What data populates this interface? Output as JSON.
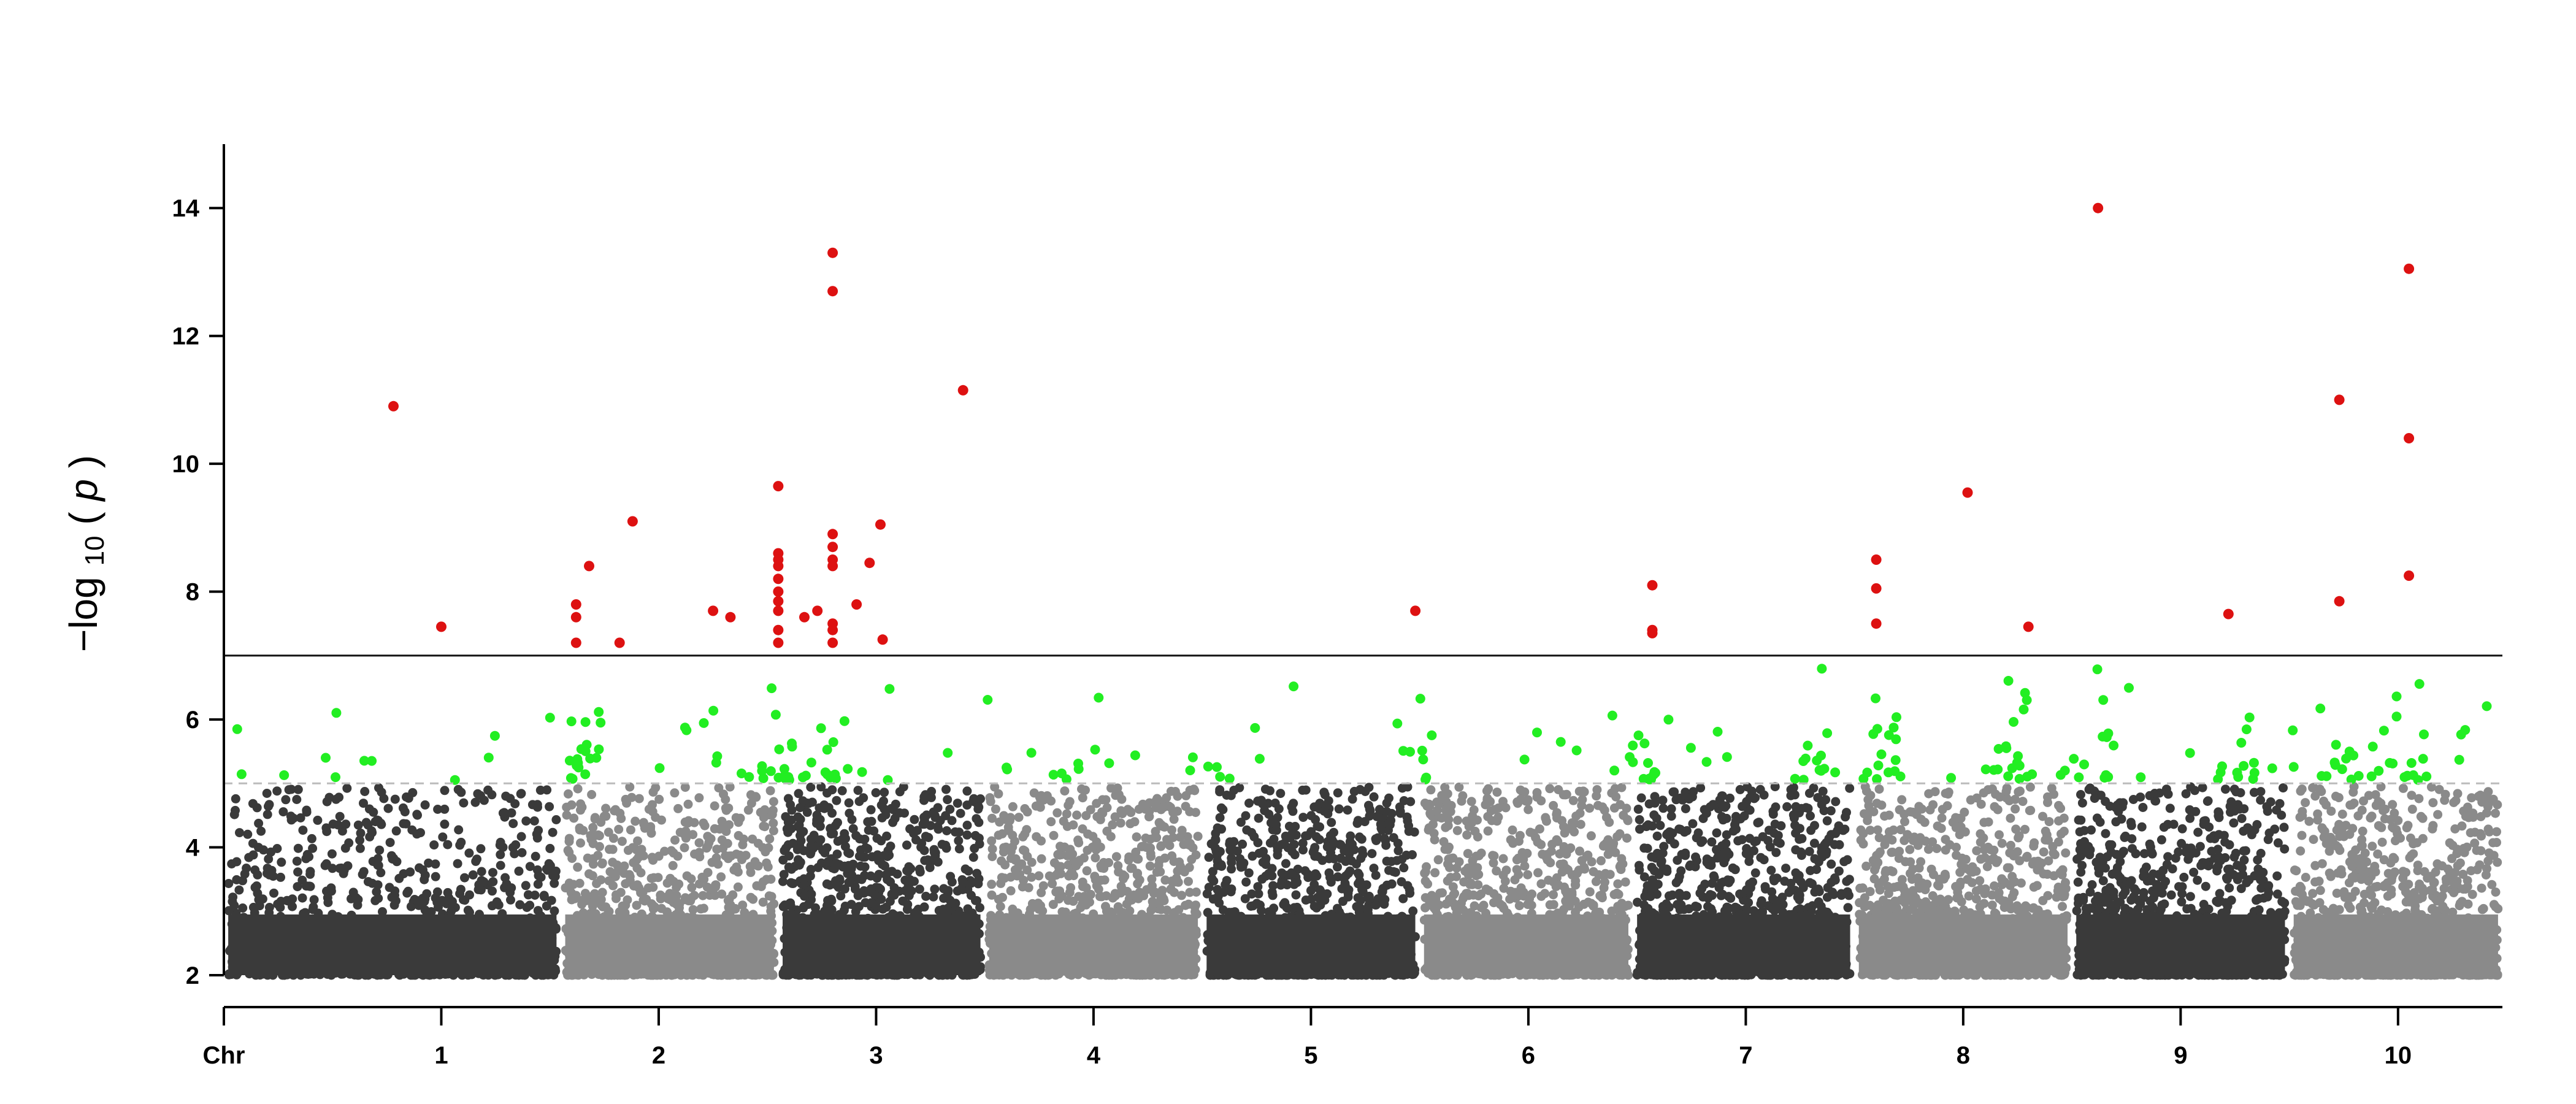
{
  "chart_data": {
    "type": "scatter",
    "subtype": "manhattan",
    "title": "",
    "xlabel": "Chr",
    "ylabel_parts": {
      "main": "−log",
      "sub": "10",
      "open": "(",
      "var": "p",
      "close": ")"
    },
    "ylim": [
      2,
      15
    ],
    "yticks": [
      2,
      4,
      6,
      8,
      10,
      12,
      14
    ],
    "grid": false,
    "legend": "none",
    "significance_threshold": 7,
    "suggestive_threshold": 5,
    "colors": {
      "dark": "#3a3a3a",
      "light": "#8a8a8a",
      "suggestive": "#22ee22",
      "significant": "#dd1111",
      "threshold_line": "#111111",
      "suggestive_line": "#bbbbbb"
    },
    "chromosomes": [
      {
        "label": "1",
        "start": 0.0,
        "end": 1.55,
        "shade": "dark"
      },
      {
        "label": "2",
        "start": 1.55,
        "end": 2.55,
        "shade": "light"
      },
      {
        "label": "3",
        "start": 2.55,
        "end": 3.5,
        "shade": "dark"
      },
      {
        "label": "4",
        "start": 3.5,
        "end": 4.5,
        "shade": "light"
      },
      {
        "label": "5",
        "start": 4.5,
        "end": 5.5,
        "shade": "dark"
      },
      {
        "label": "6",
        "start": 5.5,
        "end": 6.48,
        "shade": "light"
      },
      {
        "label": "7",
        "start": 6.48,
        "end": 7.5,
        "shade": "dark"
      },
      {
        "label": "8",
        "start": 7.5,
        "end": 8.5,
        "shade": "light"
      },
      {
        "label": "9",
        "start": 8.5,
        "end": 9.5,
        "shade": "dark"
      },
      {
        "label": "10",
        "start": 9.5,
        "end": 10.48,
        "shade": "light"
      }
    ],
    "xticks": [
      {
        "label": "Chr",
        "x": 0.0
      },
      {
        "label": "1",
        "x": 1.0
      },
      {
        "label": "2",
        "x": 2.0
      },
      {
        "label": "3",
        "x": 3.0
      },
      {
        "label": "4",
        "x": 4.0
      },
      {
        "label": "5",
        "x": 5.0
      },
      {
        "label": "6",
        "x": 6.0
      },
      {
        "label": "7",
        "x": 7.0
      },
      {
        "label": "8",
        "x": 8.0
      },
      {
        "label": "9",
        "x": 9.0
      },
      {
        "label": "10",
        "x": 10.0
      }
    ],
    "xlim": [
      0,
      10.48
    ],
    "significant_points": [
      {
        "x": 0.78,
        "y": 10.9
      },
      {
        "x": 1.0,
        "y": 7.45
      },
      {
        "x": 1.62,
        "y": 7.8
      },
      {
        "x": 1.62,
        "y": 7.6
      },
      {
        "x": 1.62,
        "y": 7.2
      },
      {
        "x": 1.68,
        "y": 8.4
      },
      {
        "x": 1.88,
        "y": 9.1
      },
      {
        "x": 1.82,
        "y": 7.2
      },
      {
        "x": 2.25,
        "y": 7.7
      },
      {
        "x": 2.33,
        "y": 7.6
      },
      {
        "x": 2.55,
        "y": 9.65
      },
      {
        "x": 2.55,
        "y": 8.6
      },
      {
        "x": 2.55,
        "y": 8.5
      },
      {
        "x": 2.55,
        "y": 8.4
      },
      {
        "x": 2.55,
        "y": 8.2
      },
      {
        "x": 2.55,
        "y": 8.0
      },
      {
        "x": 2.55,
        "y": 7.85
      },
      {
        "x": 2.55,
        "y": 7.7
      },
      {
        "x": 2.55,
        "y": 7.4
      },
      {
        "x": 2.55,
        "y": 7.2
      },
      {
        "x": 2.67,
        "y": 7.6
      },
      {
        "x": 2.73,
        "y": 7.7
      },
      {
        "x": 2.8,
        "y": 13.3
      },
      {
        "x": 2.8,
        "y": 12.7
      },
      {
        "x": 2.8,
        "y": 8.9
      },
      {
        "x": 2.8,
        "y": 8.7
      },
      {
        "x": 2.8,
        "y": 8.5
      },
      {
        "x": 2.8,
        "y": 8.4
      },
      {
        "x": 2.8,
        "y": 7.5
      },
      {
        "x": 2.8,
        "y": 7.4
      },
      {
        "x": 2.8,
        "y": 7.2
      },
      {
        "x": 2.91,
        "y": 7.8
      },
      {
        "x": 2.97,
        "y": 8.45
      },
      {
        "x": 3.02,
        "y": 9.05
      },
      {
        "x": 3.03,
        "y": 7.25
      },
      {
        "x": 3.4,
        "y": 11.15
      },
      {
        "x": 5.48,
        "y": 7.7
      },
      {
        "x": 6.57,
        "y": 8.1
      },
      {
        "x": 6.57,
        "y": 7.4
      },
      {
        "x": 6.57,
        "y": 7.35
      },
      {
        "x": 7.6,
        "y": 8.5
      },
      {
        "x": 7.6,
        "y": 8.05
      },
      {
        "x": 7.6,
        "y": 7.5
      },
      {
        "x": 8.02,
        "y": 9.55
      },
      {
        "x": 8.3,
        "y": 7.45
      },
      {
        "x": 8.62,
        "y": 14.0
      },
      {
        "x": 9.22,
        "y": 7.65
      },
      {
        "x": 9.73,
        "y": 11.0
      },
      {
        "x": 9.73,
        "y": 7.85
      },
      {
        "x": 10.05,
        "y": 13.05
      },
      {
        "x": 10.05,
        "y": 10.4
      },
      {
        "x": 10.05,
        "y": 8.25
      }
    ]
  }
}
